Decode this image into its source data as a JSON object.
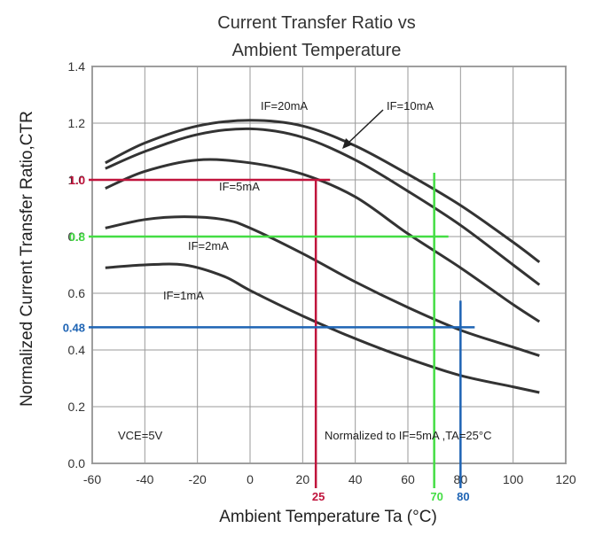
{
  "chart_data": {
    "type": "line",
    "title": [
      "Current Transfer Ratio vs",
      "Ambient Temperature"
    ],
    "xlabel": "Ambient Temperature Ta (°C)",
    "ylabel": "Normalized Current Transfer Ratio,CTR",
    "xlim": [
      -60,
      120
    ],
    "ylim": [
      0,
      1.4
    ],
    "x_ticks": [
      "-60",
      "-40",
      "-20",
      "0",
      "20",
      "40",
      "60",
      "80",
      "100",
      "120"
    ],
    "y_ticks": [
      "0.0",
      "0.2",
      "0.4",
      "0.6",
      "0.8",
      "1.0",
      "1.2",
      "1.4"
    ],
    "grid": true,
    "series": [
      {
        "name": "IF=20mA",
        "x": [
          -55,
          -40,
          -20,
          0,
          20,
          40,
          60,
          80,
          100,
          110
        ],
        "y": [
          1.06,
          1.13,
          1.19,
          1.21,
          1.19,
          1.12,
          1.02,
          0.91,
          0.78,
          0.71
        ]
      },
      {
        "name": "IF=10mA",
        "x": [
          -55,
          -40,
          -20,
          0,
          20,
          40,
          60,
          80,
          100,
          110
        ],
        "y": [
          1.04,
          1.1,
          1.16,
          1.18,
          1.15,
          1.07,
          0.96,
          0.84,
          0.7,
          0.63
        ]
      },
      {
        "name": "IF=5mA",
        "x": [
          -55,
          -40,
          -20,
          0,
          20,
          40,
          60,
          80,
          100,
          110
        ],
        "y": [
          0.97,
          1.03,
          1.07,
          1.06,
          1.02,
          0.94,
          0.81,
          0.69,
          0.56,
          0.5
        ]
      },
      {
        "name": "IF=2mA",
        "x": [
          -55,
          -40,
          -25,
          -10,
          0,
          20,
          40,
          60,
          80,
          100,
          110
        ],
        "y": [
          0.83,
          0.86,
          0.87,
          0.86,
          0.83,
          0.74,
          0.64,
          0.55,
          0.47,
          0.41,
          0.38
        ]
      },
      {
        "name": "IF=1mA",
        "x": [
          -55,
          -40,
          -25,
          -10,
          0,
          20,
          40,
          60,
          80,
          100,
          110
        ],
        "y": [
          0.69,
          0.7,
          0.7,
          0.66,
          0.61,
          0.52,
          0.44,
          0.37,
          0.31,
          0.27,
          0.25
        ]
      }
    ],
    "curve_labels": [
      "IF=20mA",
      "IF=10mA",
      "IF=5mA",
      "IF=2mA",
      "IF=1mA"
    ],
    "notes": {
      "vce": "VCE=5V",
      "normalized": "Normalized to IF=5mA ,TA=25°C"
    },
    "annotations": [
      {
        "color": "#c0143c",
        "y": 1.0,
        "y_label": "1.0",
        "x": 25,
        "x_label": "25"
      },
      {
        "color": "#44dd44",
        "y": 0.8,
        "y_label": "0.8",
        "x": 70,
        "x_label": "70"
      },
      {
        "color": "#1e64b4",
        "y": 0.48,
        "y_label": "0.48",
        "x": 80,
        "x_label": "80"
      }
    ]
  }
}
